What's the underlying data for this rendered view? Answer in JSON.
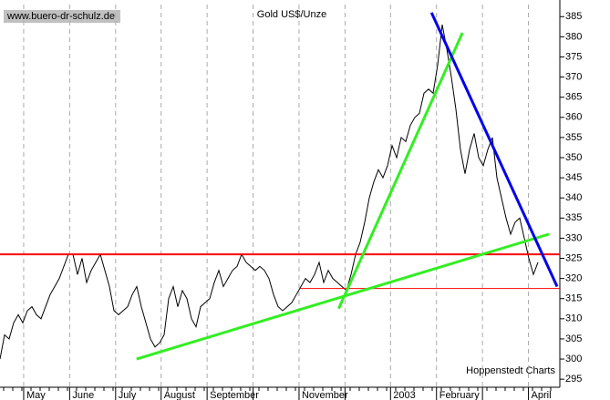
{
  "chart_data": {
    "type": "line",
    "title": "Gold US$/Unze",
    "source": "www.buero-dr-schulz.de",
    "credit": "Hoppenstedt Charts",
    "series": [
      {
        "color": "#000000",
        "values": [
          300,
          306,
          305,
          309,
          311,
          309,
          312,
          313,
          311,
          310,
          313,
          316,
          318,
          320,
          323,
          326,
          326,
          321,
          325,
          319,
          322,
          324,
          326,
          322,
          318,
          312,
          311,
          312,
          313,
          316,
          318,
          313,
          309,
          305,
          303,
          304,
          306,
          315,
          318,
          313,
          317,
          315,
          310,
          308,
          313,
          314,
          315,
          319,
          322,
          318,
          320,
          322,
          323,
          326,
          324,
          323,
          322,
          323,
          322,
          320,
          316,
          313,
          312,
          313,
          314,
          316,
          318,
          320,
          319,
          321,
          324,
          319,
          322,
          320,
          319,
          318,
          317,
          321,
          326,
          329,
          334,
          340,
          344,
          347,
          345,
          348,
          353,
          350,
          355,
          354,
          358,
          360,
          361,
          366,
          367,
          366,
          373,
          383,
          377,
          370,
          362,
          352,
          346,
          352,
          356,
          350,
          348,
          352,
          355,
          345,
          340,
          335,
          331,
          334,
          335,
          330,
          325,
          321,
          324
        ]
      }
    ],
    "xlim": [
      0,
      123
    ],
    "xticks": [
      {
        "value": 5.2,
        "label": "May"
      },
      {
        "value": 15.3,
        "label": "June"
      },
      {
        "value": 25.4,
        "label": "July"
      },
      {
        "value": 35.4,
        "label": "August"
      },
      {
        "value": 45.5,
        "label": "September"
      },
      {
        "value": 55.6,
        "label": null
      },
      {
        "value": 65.7,
        "label": "November"
      },
      {
        "value": 75.8,
        "label": null
      },
      {
        "value": 85.8,
        "label": "2003"
      },
      {
        "value": 95.9,
        "label": "February"
      },
      {
        "value": 106,
        "label": null
      },
      {
        "value": 116.1,
        "label": "April"
      }
    ],
    "ylim": [
      293,
      388
    ],
    "yticks": [
      295,
      300,
      305,
      310,
      315,
      320,
      325,
      330,
      335,
      340,
      345,
      350,
      355,
      360,
      365,
      370,
      375,
      380,
      385
    ],
    "grid": true,
    "trend_lines": [
      {
        "color": "#ff0000",
        "width": 2,
        "from": [
          0,
          326
        ],
        "to": [
          123,
          326
        ]
      },
      {
        "color": "#ff0000",
        "width": 1,
        "from": [
          66,
          317.5
        ],
        "to": [
          123,
          317.5
        ]
      },
      {
        "color": "#33ee22",
        "width": 3,
        "from": [
          30,
          300
        ],
        "to": [
          120.6,
          331
        ]
      },
      {
        "color": "#33ee22",
        "width": 3,
        "from": [
          74.4,
          312.5
        ],
        "to": [
          101.6,
          381
        ]
      },
      {
        "color": "#0000ee",
        "width": 3,
        "from": [
          94.8,
          386
        ],
        "to": [
          122.4,
          318
        ]
      }
    ]
  }
}
